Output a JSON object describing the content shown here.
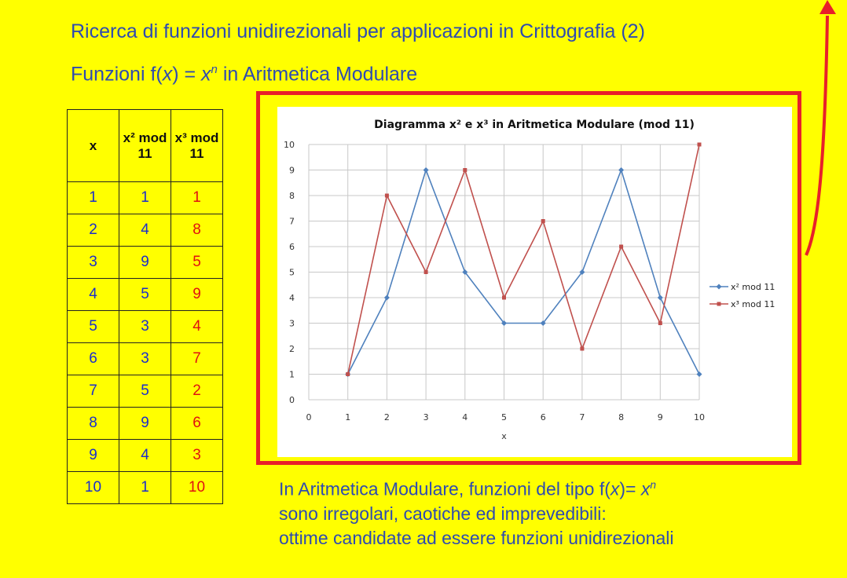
{
  "header": {
    "title": "Ricerca di funzioni unidirezionali per applicazioni in Crittografia (2)",
    "subtitle_prefix": "Funzioni f(",
    "subtitle_var": "x",
    "subtitle_mid": ") = ",
    "subtitle_base": "x",
    "subtitle_exp": "n",
    "subtitle_suffix": " in Aritmetica Modulare"
  },
  "table": {
    "headers": [
      "x",
      "x² mod 11",
      "x³ mod 11"
    ],
    "rows": [
      [
        "1",
        "1",
        "1"
      ],
      [
        "2",
        "4",
        "8"
      ],
      [
        "3",
        "9",
        "5"
      ],
      [
        "4",
        "5",
        "9"
      ],
      [
        "5",
        "3",
        "4"
      ],
      [
        "6",
        "3",
        "7"
      ],
      [
        "7",
        "5",
        "2"
      ],
      [
        "8",
        "9",
        "6"
      ],
      [
        "9",
        "4",
        "3"
      ],
      [
        "10",
        "1",
        "10"
      ]
    ]
  },
  "note": {
    "line1_prefix": "In Aritmetica Modulare, funzioni del tipo f(",
    "line1_var": "x",
    "line1_mid": ")= ",
    "line1_base": "x",
    "line1_exp": "n",
    "line2": "sono irregolari, caotiche ed imprevedibili:",
    "line3": "ottime candidate ad essere funzioni unidirezionali"
  },
  "colors": {
    "background": "#ffff00",
    "frame": "#e8202a",
    "text_blue": "#2e4bb0",
    "series_square": "#4f81bd",
    "series_cube": "#c0504d"
  },
  "chart_data": {
    "type": "line",
    "title": "Diagramma x² e x³ in Aritmetica Modulare (mod 11)",
    "xlabel": "x",
    "ylabel": "",
    "xlim": [
      0,
      10
    ],
    "ylim": [
      0,
      10
    ],
    "xticks": [
      0,
      1,
      2,
      3,
      4,
      5,
      6,
      7,
      8,
      9,
      10
    ],
    "yticks": [
      0,
      1,
      2,
      3,
      4,
      5,
      6,
      7,
      8,
      9,
      10
    ],
    "grid": true,
    "legend": "right",
    "x": [
      1,
      2,
      3,
      4,
      5,
      6,
      7,
      8,
      9,
      10
    ],
    "series": [
      {
        "name": "x² mod 11",
        "color": "#4f81bd",
        "marker": "diamond",
        "values": [
          1,
          4,
          9,
          5,
          3,
          3,
          5,
          9,
          4,
          1
        ]
      },
      {
        "name": "x³ mod 11",
        "color": "#c0504d",
        "marker": "square",
        "values": [
          1,
          8,
          5,
          9,
          4,
          7,
          2,
          6,
          3,
          10
        ]
      }
    ]
  }
}
